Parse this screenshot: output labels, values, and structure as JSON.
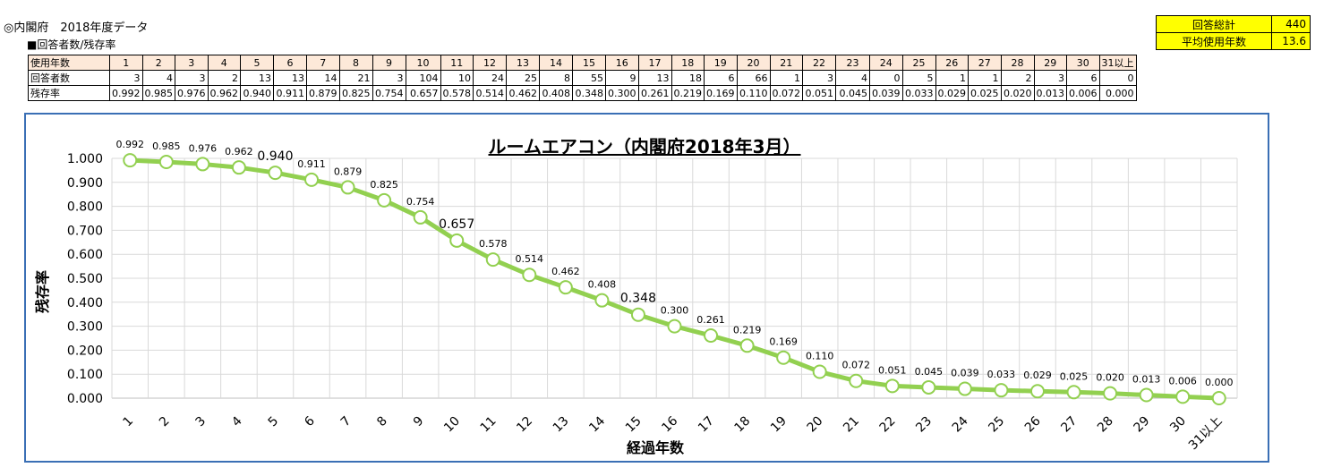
{
  "header": {
    "title": "◎内閣府　2018年度データ",
    "subtitle": "■回答者数/残存率"
  },
  "summary": {
    "total_label": "回答総計",
    "total_value": "440",
    "avg_label": "平均使用年数",
    "avg_value": "13.6"
  },
  "table": {
    "row_headers": [
      "使用年数",
      "回答者数",
      "残存率"
    ],
    "years": [
      "1",
      "2",
      "3",
      "4",
      "5",
      "6",
      "7",
      "8",
      "9",
      "10",
      "11",
      "12",
      "13",
      "14",
      "15",
      "16",
      "17",
      "18",
      "19",
      "20",
      "21",
      "22",
      "23",
      "24",
      "25",
      "26",
      "27",
      "28",
      "29",
      "30",
      "31以上"
    ],
    "respondents": [
      "3",
      "4",
      "3",
      "2",
      "13",
      "13",
      "14",
      "21",
      "3",
      "104",
      "10",
      "24",
      "25",
      "8",
      "55",
      "9",
      "13",
      "18",
      "6",
      "66",
      "1",
      "3",
      "4",
      "0",
      "5",
      "1",
      "1",
      "2",
      "3",
      "6",
      "0"
    ],
    "survival": [
      "0.992",
      "0.985",
      "0.976",
      "0.962",
      "0.940",
      "0.911",
      "0.879",
      "0.825",
      "0.754",
      "0.657",
      "0.578",
      "0.514",
      "0.462",
      "0.408",
      "0.348",
      "0.300",
      "0.261",
      "0.219",
      "0.169",
      "0.110",
      "0.072",
      "0.051",
      "0.045",
      "0.039",
      "0.033",
      "0.029",
      "0.025",
      "0.020",
      "0.013",
      "0.006",
      "0.000"
    ]
  },
  "colors": {
    "line": "#92d050",
    "frame": "#3a6fb5",
    "summary_bg": "#ffff00",
    "table_header_bg": "#fde9d9"
  },
  "chart_data": {
    "type": "line",
    "title": "ルームエアコン（内閣府2018年3月）",
    "xlabel": "経過年数",
    "ylabel": "残存率",
    "categories": [
      "1",
      "2",
      "3",
      "4",
      "5",
      "6",
      "7",
      "8",
      "9",
      "10",
      "11",
      "12",
      "13",
      "14",
      "15",
      "16",
      "17",
      "18",
      "19",
      "20",
      "21",
      "22",
      "23",
      "24",
      "25",
      "26",
      "27",
      "28",
      "29",
      "30",
      "31以上"
    ],
    "series": [
      {
        "values": [
          0.992,
          0.985,
          0.976,
          0.962,
          0.94,
          0.911,
          0.879,
          0.825,
          0.754,
          0.657,
          0.578,
          0.514,
          0.462,
          0.408,
          0.348,
          0.3,
          0.261,
          0.219,
          0.169,
          0.11,
          0.072,
          0.051,
          0.045,
          0.039,
          0.033,
          0.029,
          0.025,
          0.02,
          0.013,
          0.006,
          0.0
        ]
      }
    ],
    "data_labels": [
      "0.992",
      "0.985",
      "0.976",
      "0.962",
      "0.940",
      "0.911",
      "0.879",
      "0.825",
      "0.754",
      "0.657",
      "0.578",
      "0.514",
      "0.462",
      "0.408",
      "0.348",
      "0.300",
      "0.261",
      "0.219",
      "0.169",
      "0.110",
      "0.072",
      "0.051",
      "0.045",
      "0.039",
      "0.033",
      "0.029",
      "0.025",
      "0.020",
      "0.013",
      "0.006",
      "0.000"
    ],
    "ylim": [
      0,
      1
    ],
    "yticks": [
      "0.000",
      "0.100",
      "0.200",
      "0.300",
      "0.400",
      "0.500",
      "0.600",
      "0.700",
      "0.800",
      "0.900",
      "1.000"
    ],
    "grid": true,
    "legend": "none"
  }
}
